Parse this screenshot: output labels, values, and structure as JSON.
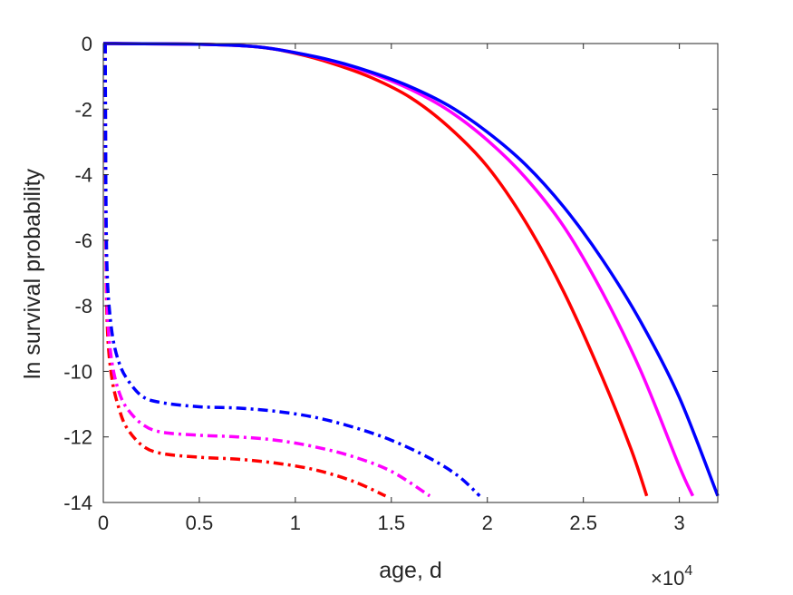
{
  "chart_data": {
    "type": "line",
    "xlabel": "age, d",
    "ylabel": "ln survival probability",
    "x_multiplier": {
      "base": "×10",
      "exponent": "4"
    },
    "xlim": [
      0,
      3.2
    ],
    "ylim": [
      -14,
      0
    ],
    "x_ticks": [
      0,
      0.5,
      1,
      1.5,
      2,
      2.5,
      3
    ],
    "x_tick_labels": [
      "0",
      "0.5",
      "1",
      "1.5",
      "2",
      "2.5",
      "3"
    ],
    "y_ticks": [
      0,
      -2,
      -4,
      -6,
      -8,
      -10,
      -12,
      -14
    ],
    "y_tick_labels": [
      "0",
      "-2",
      "-4",
      "-6",
      "-8",
      "-10",
      "-12",
      "-14"
    ],
    "grid": false,
    "series": [
      {
        "color": "#ff0000",
        "style": "solid",
        "points": [
          [
            0,
            0
          ],
          [
            0.5,
            -0.02
          ],
          [
            0.8,
            -0.1
          ],
          [
            1.0,
            -0.3
          ],
          [
            1.2,
            -0.62
          ],
          [
            1.4,
            -1.05
          ],
          [
            1.6,
            -1.65
          ],
          [
            1.8,
            -2.55
          ],
          [
            2.0,
            -3.75
          ],
          [
            2.2,
            -5.45
          ],
          [
            2.4,
            -7.6
          ],
          [
            2.6,
            -10.2
          ],
          [
            2.75,
            -12.4
          ],
          [
            2.83,
            -13.8
          ]
        ]
      },
      {
        "color": "#ff00ff",
        "style": "solid",
        "points": [
          [
            0,
            0
          ],
          [
            0.5,
            -0.02
          ],
          [
            0.8,
            -0.1
          ],
          [
            1.0,
            -0.28
          ],
          [
            1.2,
            -0.55
          ],
          [
            1.4,
            -0.92
          ],
          [
            1.6,
            -1.4
          ],
          [
            1.8,
            -2.05
          ],
          [
            2.0,
            -2.95
          ],
          [
            2.2,
            -4.1
          ],
          [
            2.4,
            -5.6
          ],
          [
            2.6,
            -7.6
          ],
          [
            2.8,
            -10.0
          ],
          [
            3.0,
            -12.9
          ],
          [
            3.07,
            -13.8
          ]
        ]
      },
      {
        "color": "#0000ff",
        "style": "solid",
        "points": [
          [
            0,
            0
          ],
          [
            0.5,
            -0.02
          ],
          [
            0.8,
            -0.1
          ],
          [
            1.0,
            -0.28
          ],
          [
            1.2,
            -0.53
          ],
          [
            1.4,
            -0.88
          ],
          [
            1.6,
            -1.32
          ],
          [
            1.8,
            -1.9
          ],
          [
            2.0,
            -2.7
          ],
          [
            2.2,
            -3.7
          ],
          [
            2.4,
            -5.0
          ],
          [
            2.6,
            -6.6
          ],
          [
            2.8,
            -8.5
          ],
          [
            3.0,
            -10.8
          ],
          [
            3.2,
            -13.8
          ]
        ]
      },
      {
        "color": "#ff0000",
        "style": "dashdot",
        "points": [
          [
            0.01,
            0
          ],
          [
            0.012,
            -4
          ],
          [
            0.015,
            -7
          ],
          [
            0.02,
            -8.5
          ],
          [
            0.03,
            -9.5
          ],
          [
            0.05,
            -10.4
          ],
          [
            0.08,
            -11.1
          ],
          [
            0.12,
            -11.7
          ],
          [
            0.2,
            -12.25
          ],
          [
            0.3,
            -12.5
          ],
          [
            0.5,
            -12.62
          ],
          [
            0.7,
            -12.68
          ],
          [
            0.9,
            -12.8
          ],
          [
            1.1,
            -13.0
          ],
          [
            1.3,
            -13.35
          ],
          [
            1.47,
            -13.8
          ]
        ]
      },
      {
        "color": "#ff00ff",
        "style": "dashdot",
        "points": [
          [
            0.01,
            0
          ],
          [
            0.012,
            -4
          ],
          [
            0.015,
            -6.5
          ],
          [
            0.02,
            -8
          ],
          [
            0.03,
            -9
          ],
          [
            0.05,
            -9.9
          ],
          [
            0.08,
            -10.6
          ],
          [
            0.12,
            -11.1
          ],
          [
            0.2,
            -11.6
          ],
          [
            0.3,
            -11.85
          ],
          [
            0.5,
            -11.95
          ],
          [
            0.7,
            -12.0
          ],
          [
            0.9,
            -12.1
          ],
          [
            1.1,
            -12.3
          ],
          [
            1.3,
            -12.6
          ],
          [
            1.5,
            -13.05
          ],
          [
            1.7,
            -13.8
          ]
        ]
      },
      {
        "color": "#0000ff",
        "style": "dashdot",
        "points": [
          [
            0.01,
            0
          ],
          [
            0.012,
            -3
          ],
          [
            0.015,
            -5.5
          ],
          [
            0.02,
            -7
          ],
          [
            0.03,
            -8
          ],
          [
            0.05,
            -9
          ],
          [
            0.08,
            -9.7
          ],
          [
            0.12,
            -10.2
          ],
          [
            0.2,
            -10.75
          ],
          [
            0.3,
            -10.95
          ],
          [
            0.5,
            -11.08
          ],
          [
            0.7,
            -11.12
          ],
          [
            0.9,
            -11.22
          ],
          [
            1.1,
            -11.4
          ],
          [
            1.3,
            -11.7
          ],
          [
            1.5,
            -12.1
          ],
          [
            1.7,
            -12.65
          ],
          [
            1.85,
            -13.2
          ],
          [
            1.96,
            -13.8
          ]
        ]
      }
    ]
  }
}
